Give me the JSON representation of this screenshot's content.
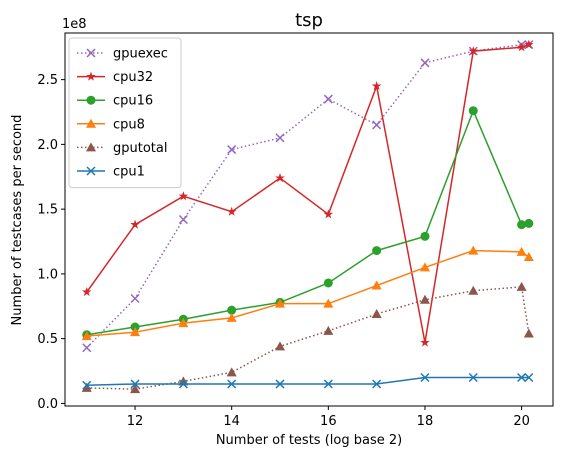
{
  "chart_data": {
    "type": "line",
    "title": "tsp",
    "xlabel": "Number of tests (log base 2)",
    "ylabel": "Number of testcases per second",
    "offset_label": "1e8",
    "xlim": [
      10.55,
      20.65
    ],
    "ylim": [
      -0.02,
      2.86
    ],
    "x_ticks": [
      12,
      14,
      16,
      18,
      20
    ],
    "y_ticks": [
      0.0,
      0.5,
      1.0,
      1.5,
      2.0,
      2.5
    ],
    "y_tick_labels": [
      "0.0",
      "0.5",
      "1.0",
      "1.5",
      "2.0",
      "2.5"
    ],
    "grid": false,
    "legend_position": "top-left",
    "series": [
      {
        "name": "gpuexec",
        "color": "#9467bd",
        "marker": "x",
        "linestyle": "dotted",
        "x": [
          11,
          12,
          13,
          14,
          15,
          16,
          17,
          18,
          19,
          20,
          20.15
        ],
        "y": [
          0.43,
          0.81,
          1.42,
          1.96,
          2.05,
          2.35,
          2.15,
          2.63,
          2.72,
          2.77,
          2.77
        ]
      },
      {
        "name": "cpu32",
        "color": "#d62728",
        "marker": "star",
        "linestyle": "solid",
        "x": [
          11,
          12,
          13,
          14,
          15,
          16,
          17,
          18,
          19,
          20,
          20.15
        ],
        "y": [
          0.86,
          1.38,
          1.6,
          1.48,
          1.74,
          1.46,
          2.45,
          0.47,
          2.72,
          2.75,
          2.77
        ]
      },
      {
        "name": "cpu16",
        "color": "#2ca02c",
        "marker": "circle",
        "linestyle": "solid",
        "x": [
          11,
          12,
          13,
          14,
          15,
          16,
          17,
          18,
          19,
          20,
          20.15
        ],
        "y": [
          0.53,
          0.59,
          0.65,
          0.72,
          0.78,
          0.93,
          1.18,
          1.29,
          2.26,
          1.38,
          1.39
        ]
      },
      {
        "name": "cpu8",
        "color": "#ff7f0e",
        "marker": "triangle",
        "linestyle": "solid",
        "x": [
          11,
          12,
          13,
          14,
          15,
          16,
          17,
          18,
          19,
          20,
          20.15
        ],
        "y": [
          0.52,
          0.55,
          0.62,
          0.66,
          0.77,
          0.77,
          0.91,
          1.05,
          1.18,
          1.17,
          1.13
        ]
      },
      {
        "name": "gputotal",
        "color": "#8c564b",
        "marker": "triangle",
        "linestyle": "dotted",
        "x": [
          11,
          12,
          13,
          14,
          15,
          16,
          17,
          18,
          19,
          20,
          20.15
        ],
        "y": [
          0.12,
          0.11,
          0.17,
          0.24,
          0.44,
          0.56,
          0.69,
          0.8,
          0.87,
          0.9,
          0.54
        ]
      },
      {
        "name": "cpu1",
        "color": "#1f77b4",
        "marker": "x",
        "linestyle": "solid",
        "x": [
          11,
          12,
          13,
          14,
          15,
          16,
          17,
          18,
          19,
          20,
          20.15
        ],
        "y": [
          0.14,
          0.15,
          0.15,
          0.15,
          0.15,
          0.15,
          0.15,
          0.2,
          0.2,
          0.2,
          0.2
        ]
      }
    ]
  }
}
